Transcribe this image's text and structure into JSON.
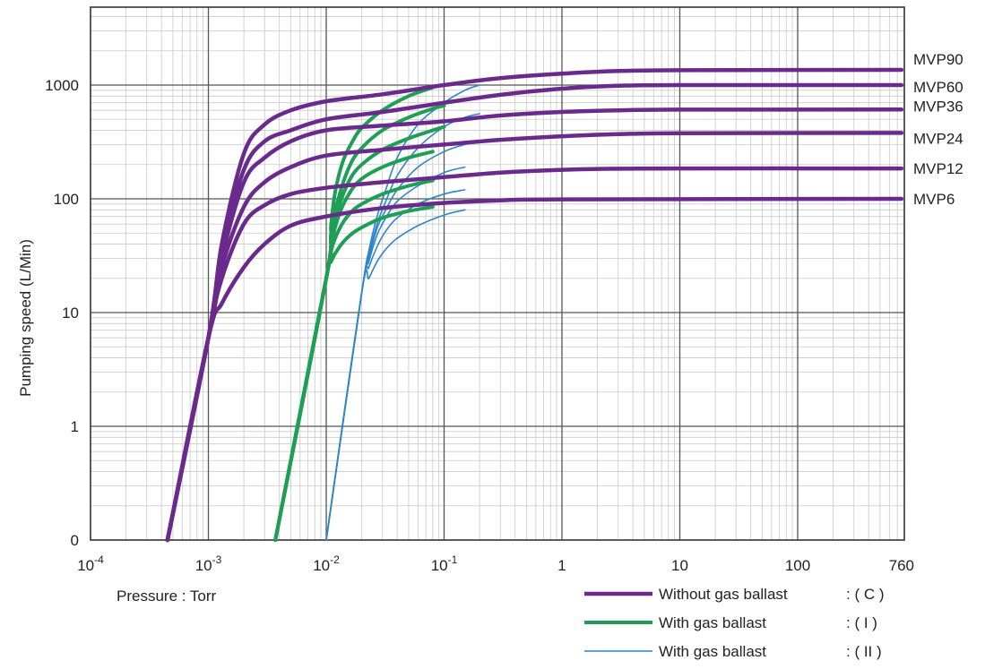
{
  "chart_data": {
    "type": "line",
    "x_scale": "log",
    "y_scale": "log",
    "xlabel": "Pressure : Torr",
    "ylabel": "Pumping speed (L/Min)",
    "xlim": [
      0.0001,
      760
    ],
    "ylim": [
      0.1,
      10000
    ],
    "grid": true,
    "x_ticks": [
      {
        "value": 0.0001,
        "base": "10",
        "exp": "-4"
      },
      {
        "value": 0.001,
        "base": "10",
        "exp": "-3"
      },
      {
        "value": 0.01,
        "base": "10",
        "exp": "-2"
      },
      {
        "value": 0.1,
        "base": "10",
        "exp": "-1"
      },
      {
        "value": 1,
        "label": "1"
      },
      {
        "value": 10,
        "label": "10"
      },
      {
        "value": 100,
        "label": "100"
      },
      {
        "value": 760,
        "label": "760"
      }
    ],
    "y_ticks": [
      {
        "value": 0.1,
        "label": "0"
      },
      {
        "value": 1,
        "label": "1"
      },
      {
        "value": 10,
        "label": "10"
      },
      {
        "value": 100,
        "label": "100"
      },
      {
        "value": 1000,
        "label": "1000"
      }
    ],
    "models": [
      {
        "name": "MVP90",
        "max_speed": 1360
      },
      {
        "name": "MVP60",
        "max_speed": 1000
      },
      {
        "name": "MVP36",
        "max_speed": 610
      },
      {
        "name": "MVP24",
        "max_speed": 380
      },
      {
        "name": "MVP12",
        "max_speed": 185
      },
      {
        "name": "MVP6",
        "max_speed": 100
      }
    ],
    "series": [
      {
        "mode": "C",
        "name": "Without gas ballast : ( C )",
        "color": "#6a2a8c",
        "stroke": 4.5,
        "curves": [
          {
            "model": "MVP90",
            "points": [
              [
                0.00045,
                0.1
              ],
              [
                0.001,
                6
              ],
              [
                0.0013,
                40
              ],
              [
                0.002,
                250
              ],
              [
                0.003,
                450
              ],
              [
                0.005,
                600
              ],
              [
                0.01,
                720
              ],
              [
                0.03,
                830
              ],
              [
                0.1,
                1000
              ],
              [
                0.3,
                1150
              ],
              [
                1,
                1260
              ],
              [
                3,
                1330
              ],
              [
                10,
                1350
              ],
              [
                760,
                1360
              ]
            ]
          },
          {
            "model": "MVP60",
            "points": [
              [
                0.00045,
                0.1
              ],
              [
                0.001,
                6
              ],
              [
                0.0013,
                35
              ],
              [
                0.002,
                180
              ],
              [
                0.003,
                320
              ],
              [
                0.005,
                400
              ],
              [
                0.01,
                500
              ],
              [
                0.03,
                580
              ],
              [
                0.1,
                700
              ],
              [
                0.3,
                820
              ],
              [
                1,
                930
              ],
              [
                3,
                985
              ],
              [
                10,
                1000
              ],
              [
                760,
                1000
              ]
            ]
          },
          {
            "model": "MVP36",
            "points": [
              [
                0.00045,
                0.1
              ],
              [
                0.001,
                6
              ],
              [
                0.0013,
                30
              ],
              [
                0.002,
                140
              ],
              [
                0.003,
                230
              ],
              [
                0.005,
                320
              ],
              [
                0.01,
                400
              ],
              [
                0.03,
                440
              ],
              [
                0.1,
                480
              ],
              [
                0.3,
                540
              ],
              [
                1,
                580
              ],
              [
                3,
                600
              ],
              [
                10,
                608
              ],
              [
                760,
                610
              ]
            ]
          },
          {
            "model": "MVP24",
            "points": [
              [
                0.00045,
                0.1
              ],
              [
                0.001,
                6
              ],
              [
                0.0013,
                25
              ],
              [
                0.002,
                85
              ],
              [
                0.003,
                140
              ],
              [
                0.005,
                190
              ],
              [
                0.01,
                240
              ],
              [
                0.03,
                270
              ],
              [
                0.1,
                300
              ],
              [
                0.3,
                330
              ],
              [
                1,
                355
              ],
              [
                3,
                370
              ],
              [
                10,
                378
              ],
              [
                760,
                380
              ]
            ]
          },
          {
            "model": "MVP12",
            "points": [
              [
                0.00045,
                0.1
              ],
              [
                0.001,
                6
              ],
              [
                0.0013,
                20
              ],
              [
                0.002,
                60
              ],
              [
                0.003,
                88
              ],
              [
                0.005,
                110
              ],
              [
                0.01,
                125
              ],
              [
                0.03,
                140
              ],
              [
                0.1,
                155
              ],
              [
                0.3,
                170
              ],
              [
                1,
                180
              ],
              [
                3,
                184
              ],
              [
                10,
                185
              ],
              [
                760,
                185
              ]
            ]
          },
          {
            "model": "MVP6",
            "points": [
              [
                0.00045,
                0.1
              ],
              [
                0.001,
                6
              ],
              [
                0.0013,
                12
              ],
              [
                0.002,
                25
              ],
              [
                0.003,
                40
              ],
              [
                0.005,
                58
              ],
              [
                0.01,
                70
              ],
              [
                0.03,
                83
              ],
              [
                0.1,
                92
              ],
              [
                0.3,
                97
              ],
              [
                1,
                99
              ],
              [
                760,
                100
              ]
            ]
          }
        ]
      },
      {
        "mode": "I",
        "name": "With gas ballast : ( I )",
        "color": "#1f9e55",
        "stroke": 4,
        "curves": [
          {
            "model": "MVP90",
            "points": [
              [
                0.0037,
                0.1
              ],
              [
                0.01,
                20
              ],
              [
                0.011,
                60
              ],
              [
                0.012,
                120
              ],
              [
                0.014,
                220
              ],
              [
                0.017,
                330
              ],
              [
                0.02,
                420
              ],
              [
                0.03,
                600
              ],
              [
                0.05,
                800
              ],
              [
                0.08,
                950
              ]
            ]
          },
          {
            "model": "MVP60",
            "points": [
              [
                0.0037,
                0.1
              ],
              [
                0.01,
                20
              ],
              [
                0.011,
                50
              ],
              [
                0.013,
                110
              ],
              [
                0.016,
                200
              ],
              [
                0.02,
                280
              ],
              [
                0.03,
                400
              ],
              [
                0.05,
                520
              ],
              [
                0.08,
                620
              ],
              [
                0.1,
                660
              ]
            ]
          },
          {
            "model": "MVP36",
            "points": [
              [
                0.0037,
                0.1
              ],
              [
                0.01,
                20
              ],
              [
                0.011,
                45
              ],
              [
                0.013,
                90
              ],
              [
                0.016,
                150
              ],
              [
                0.02,
                200
              ],
              [
                0.03,
                270
              ],
              [
                0.05,
                340
              ],
              [
                0.08,
                400
              ],
              [
                0.1,
                430
              ]
            ]
          },
          {
            "model": "MVP24",
            "points": [
              [
                0.0037,
                0.1
              ],
              [
                0.01,
                20
              ],
              [
                0.011,
                40
              ],
              [
                0.013,
                75
              ],
              [
                0.016,
                115
              ],
              [
                0.02,
                150
              ],
              [
                0.03,
                190
              ],
              [
                0.05,
                230
              ],
              [
                0.08,
                260
              ]
            ]
          },
          {
            "model": "MVP12",
            "points": [
              [
                0.0037,
                0.1
              ],
              [
                0.01,
                20
              ],
              [
                0.011,
                35
              ],
              [
                0.013,
                55
              ],
              [
                0.016,
                75
              ],
              [
                0.02,
                90
              ],
              [
                0.03,
                110
              ],
              [
                0.05,
                130
              ],
              [
                0.08,
                145
              ]
            ]
          },
          {
            "model": "MVP6",
            "points": [
              [
                0.0037,
                0.1
              ],
              [
                0.01,
                20
              ],
              [
                0.011,
                28
              ],
              [
                0.013,
                38
              ],
              [
                0.016,
                48
              ],
              [
                0.02,
                56
              ],
              [
                0.03,
                68
              ],
              [
                0.05,
                78
              ],
              [
                0.08,
                85
              ]
            ]
          }
        ]
      },
      {
        "mode": "II",
        "name": "With gas ballast : ( II )",
        "color": "#2e86c8",
        "stroke": 1.6,
        "curves": [
          {
            "model": "MVP90",
            "points": [
              [
                0.01,
                0.1
              ],
              [
                0.02,
                15
              ],
              [
                0.023,
                35
              ],
              [
                0.027,
                70
              ],
              [
                0.032,
                120
              ],
              [
                0.04,
                230
              ],
              [
                0.06,
                450
              ],
              [
                0.1,
                700
              ],
              [
                0.15,
                900
              ],
              [
                0.2,
                1000
              ]
            ]
          },
          {
            "model": "MVP60",
            "points": [
              [
                0.01,
                0.1
              ],
              [
                0.02,
                15
              ],
              [
                0.023,
                32
              ],
              [
                0.027,
                60
              ],
              [
                0.032,
                95
              ],
              [
                0.04,
                160
              ],
              [
                0.06,
                280
              ],
              [
                0.1,
                430
              ],
              [
                0.15,
                520
              ],
              [
                0.2,
                560
              ]
            ]
          },
          {
            "model": "MVP36",
            "points": [
              [
                0.01,
                0.1
              ],
              [
                0.02,
                15
              ],
              [
                0.023,
                30
              ],
              [
                0.027,
                55
              ],
              [
                0.032,
                80
              ],
              [
                0.04,
                120
              ],
              [
                0.06,
                190
              ],
              [
                0.1,
                260
              ],
              [
                0.15,
                300
              ],
              [
                0.2,
                320
              ]
            ]
          },
          {
            "model": "MVP24",
            "points": [
              [
                0.01,
                0.1
              ],
              [
                0.02,
                15
              ],
              [
                0.023,
                28
              ],
              [
                0.027,
                48
              ],
              [
                0.032,
                68
              ],
              [
                0.04,
                95
              ],
              [
                0.06,
                130
              ],
              [
                0.1,
                170
              ],
              [
                0.15,
                190
              ]
            ]
          },
          {
            "model": "MVP12",
            "points": [
              [
                0.01,
                0.1
              ],
              [
                0.02,
                15
              ],
              [
                0.023,
                25
              ],
              [
                0.027,
                38
              ],
              [
                0.032,
                52
              ],
              [
                0.04,
                68
              ],
              [
                0.06,
                90
              ],
              [
                0.1,
                110
              ],
              [
                0.15,
                120
              ]
            ]
          },
          {
            "model": "MVP6",
            "points": [
              [
                0.01,
                0.1
              ],
              [
                0.02,
                15
              ],
              [
                0.023,
                20
              ],
              [
                0.027,
                28
              ],
              [
                0.032,
                36
              ],
              [
                0.04,
                45
              ],
              [
                0.06,
                58
              ],
              [
                0.1,
                72
              ],
              [
                0.15,
                80
              ]
            ]
          }
        ]
      }
    ],
    "legend": {
      "placement": "bottom-right",
      "items": [
        {
          "mode": "C",
          "text": "Without gas ballast",
          "marker": ": ( C )"
        },
        {
          "mode": "I",
          "text": "With gas ballast",
          "marker": ": ( I )"
        },
        {
          "mode": "II",
          "text": "With gas ballast",
          "marker": ": ( II )"
        }
      ]
    }
  }
}
